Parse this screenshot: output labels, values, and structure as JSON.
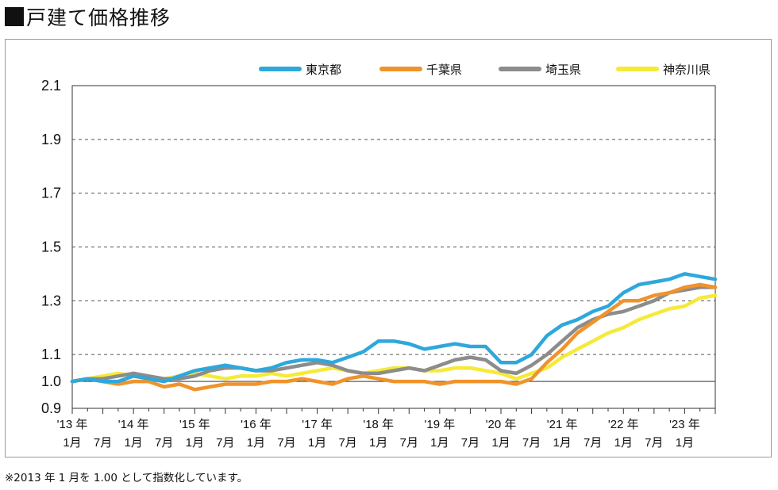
{
  "page": {
    "title": "戸建て価格推移",
    "footnote": "※2013 年 1 月を 1.00 として指数化しています。"
  },
  "chart_data": {
    "type": "line",
    "title": "",
    "xlabel": "",
    "ylabel": "",
    "ylim": [
      0.9,
      2.1
    ],
    "yticks": [
      "2.1",
      "1.9",
      "1.7",
      "1.5",
      "1.3",
      "1.1",
      "1.0",
      "0.9"
    ],
    "ytick_values": [
      2.1,
      1.9,
      1.7,
      1.5,
      1.3,
      1.1,
      1.0,
      0.9
    ],
    "x_start": "2013-01",
    "x_step_months": 3,
    "x_end": "2023-06",
    "x_year_labels": [
      "'13 年",
      "'14 年",
      "'15 年",
      "'16 年",
      "'17 年",
      "'18 年",
      "'19 年",
      "'20 年",
      "'21 年",
      "'22 年",
      "'23 年"
    ],
    "x_month_labels": [
      "1月",
      "7月"
    ],
    "grid": "horizontal dashed at y ticks, solid at 1.0",
    "legend_position": "top-right",
    "series": [
      {
        "name": "東京都",
        "color": "#2ea8dc",
        "values": [
          1.0,
          1.01,
          1.0,
          1.0,
          1.02,
          1.01,
          1.0,
          1.02,
          1.04,
          1.05,
          1.06,
          1.05,
          1.04,
          1.05,
          1.07,
          1.08,
          1.08,
          1.07,
          1.09,
          1.11,
          1.15,
          1.15,
          1.14,
          1.12,
          1.13,
          1.14,
          1.13,
          1.13,
          1.07,
          1.07,
          1.1,
          1.17,
          1.21,
          1.23,
          1.26,
          1.28,
          1.33,
          1.36,
          1.37,
          1.38,
          1.4,
          1.39,
          1.38
        ]
      },
      {
        "name": "千葉県",
        "color": "#f0932b",
        "values": [
          1.0,
          1.01,
          1.0,
          0.99,
          1.0,
          1.0,
          0.98,
          0.99,
          0.97,
          0.98,
          0.99,
          0.99,
          0.99,
          1.0,
          1.0,
          1.01,
          1.0,
          0.99,
          1.01,
          1.02,
          1.01,
          1.0,
          1.0,
          1.0,
          0.99,
          1.0,
          1.0,
          1.0,
          1.0,
          0.99,
          1.01,
          1.07,
          1.12,
          1.18,
          1.22,
          1.26,
          1.3,
          1.3,
          1.32,
          1.33,
          1.35,
          1.36,
          1.35
        ]
      },
      {
        "name": "埼玉県",
        "color": "#8c8c8c",
        "values": [
          1.0,
          1.01,
          1.01,
          1.02,
          1.03,
          1.02,
          1.01,
          1.01,
          1.02,
          1.04,
          1.05,
          1.05,
          1.04,
          1.04,
          1.05,
          1.06,
          1.07,
          1.06,
          1.04,
          1.03,
          1.03,
          1.04,
          1.05,
          1.04,
          1.06,
          1.08,
          1.09,
          1.08,
          1.04,
          1.03,
          1.06,
          1.1,
          1.15,
          1.2,
          1.23,
          1.25,
          1.26,
          1.28,
          1.3,
          1.33,
          1.34,
          1.35,
          1.35
        ]
      },
      {
        "name": "神奈川県",
        "color": "#f5ea38",
        "values": [
          1.0,
          1.01,
          1.02,
          1.03,
          1.02,
          1.01,
          1.01,
          1.02,
          1.03,
          1.02,
          1.01,
          1.02,
          1.02,
          1.03,
          1.02,
          1.03,
          1.04,
          1.05,
          1.04,
          1.03,
          1.04,
          1.05,
          1.05,
          1.04,
          1.04,
          1.05,
          1.05,
          1.04,
          1.03,
          1.01,
          1.03,
          1.05,
          1.09,
          1.12,
          1.15,
          1.18,
          1.2,
          1.23,
          1.25,
          1.27,
          1.28,
          1.31,
          1.32
        ]
      }
    ]
  }
}
